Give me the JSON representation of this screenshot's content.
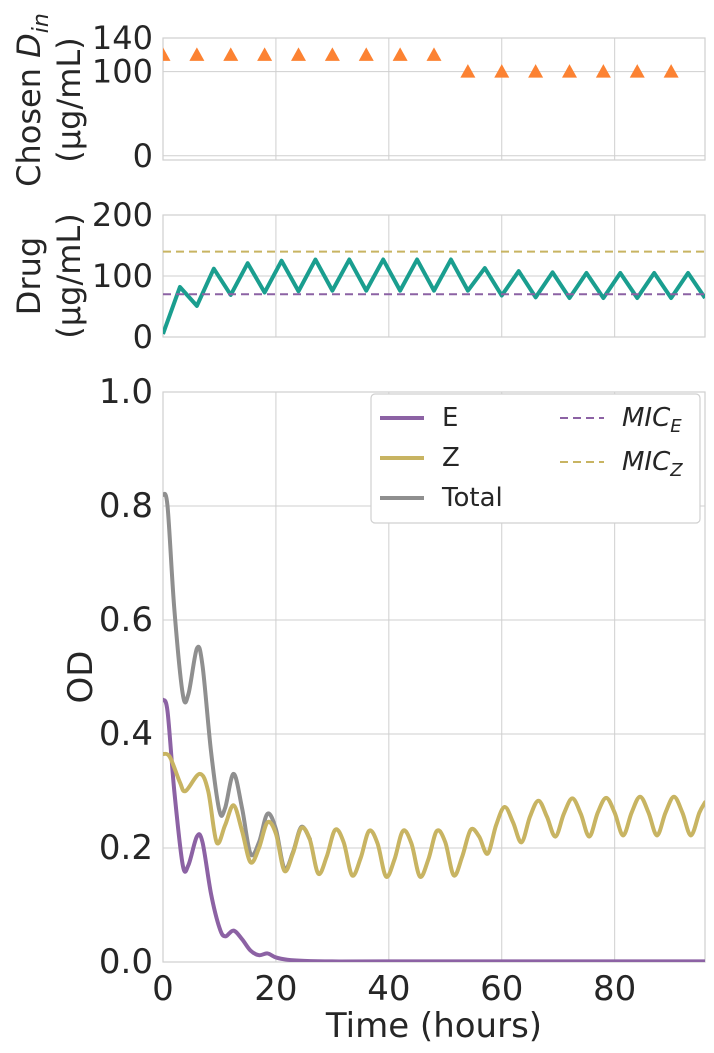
{
  "colors": {
    "dose": "#fc8232",
    "drug": "#1a9e8f",
    "mic_e": "#8c62a4",
    "mic_z": "#c8b462",
    "E": "#8c62a4",
    "Z": "#c8b462",
    "total": "#8f8f8f",
    "grid": "#cfcfcf",
    "axis_text": "#262626"
  },
  "chart_data": [
    {
      "type": "scatter",
      "marker": "triangle",
      "ylabel_line1": "Chosen ",
      "ylabel_math": "D",
      "ylabel_sub": "in",
      "ylabel_line2": "(μg/mL)",
      "xlim": [
        0,
        96
      ],
      "ylim": [
        -5,
        140
      ],
      "yticks": [
        0,
        100,
        140
      ],
      "xticks": [
        0,
        20,
        40,
        60,
        80
      ],
      "grid": true,
      "x": [
        0,
        6,
        12,
        18,
        24,
        30,
        36,
        42,
        48,
        54,
        60,
        66,
        72,
        78,
        84,
        90
      ],
      "y": [
        120,
        120,
        120,
        120,
        120,
        120,
        120,
        120,
        120,
        100,
        100,
        100,
        100,
        100,
        100,
        100
      ]
    },
    {
      "type": "line",
      "ylabel_line1": "Drug",
      "ylabel_line2": "(μg/mL)",
      "xlim": [
        0,
        96
      ],
      "ylim": [
        0,
        200
      ],
      "yticks": [
        0,
        100,
        200
      ],
      "xticks": [
        0,
        20,
        40,
        60,
        80
      ],
      "grid": true,
      "series": [
        {
          "key": "drug",
          "style": "solid",
          "x": [
            0,
            3,
            6,
            9,
            12,
            15,
            18,
            21,
            24,
            27,
            30,
            33,
            36,
            39,
            42,
            45,
            48,
            51,
            54,
            57,
            60,
            63,
            66,
            69,
            72,
            75,
            78,
            81,
            84,
            87,
            90,
            93,
            96
          ],
          "y": [
            5,
            82,
            51,
            112,
            69,
            121,
            73,
            125,
            75,
            127,
            76,
            127,
            76,
            127,
            76,
            127,
            76,
            127,
            76,
            113,
            68,
            108,
            65,
            106,
            64,
            105,
            64,
            105,
            64,
            105,
            64,
            105,
            64
          ]
        },
        {
          "key": "mic_e",
          "style": "dashed",
          "x": [
            0,
            96
          ],
          "y": [
            70,
            70
          ]
        },
        {
          "key": "mic_z",
          "style": "dashed",
          "x": [
            0,
            96
          ],
          "y": [
            140,
            140
          ]
        }
      ]
    },
    {
      "type": "line",
      "ylabel": "OD",
      "xlabel": "Time (hours)",
      "xlim": [
        0,
        96
      ],
      "ylim": [
        0.0,
        1.0
      ],
      "yticks": [
        "0.0",
        "0.2",
        "0.4",
        "0.6",
        "0.8",
        "1.0"
      ],
      "xticks": [
        0,
        20,
        40,
        60,
        80
      ],
      "grid": true,
      "legend": {
        "position": "top-right",
        "columns": 2,
        "entries": [
          {
            "label": "E",
            "key": "E",
            "style": "solid"
          },
          {
            "label": "Z",
            "key": "Z",
            "style": "solid"
          },
          {
            "label": "Total",
            "key": "total",
            "style": "solid"
          },
          {
            "label": "MIC",
            "sub": "E",
            "key": "mic_e",
            "style": "dashed",
            "math": true
          },
          {
            "label": "MIC",
            "sub": "Z",
            "key": "mic_z",
            "style": "dashed",
            "math": true
          }
        ]
      },
      "series": [
        {
          "key": "E",
          "x": [
            0,
            0.8,
            2,
            3.5,
            4.5,
            6,
            7,
            8.5,
            10,
            11,
            12.5,
            14,
            15.5,
            17,
            18.5,
            20,
            22,
            25,
            30,
            40,
            96
          ],
          "y": [
            0.46,
            0.44,
            0.3,
            0.17,
            0.17,
            0.22,
            0.21,
            0.12,
            0.06,
            0.045,
            0.055,
            0.04,
            0.02,
            0.012,
            0.015,
            0.008,
            0.004,
            0.002,
            0.001,
            0.001,
            0.001
          ]
        },
        {
          "key": "Z",
          "x": [
            0,
            1.2,
            3,
            4,
            6.5,
            8,
            9.5,
            11,
            12.5,
            14,
            15.5,
            17,
            18.5,
            20,
            21.5,
            23,
            24.5,
            26,
            27.5,
            29,
            30.5,
            32,
            33.5,
            35,
            36.5,
            38,
            39.5,
            41,
            42.5,
            44,
            45.5,
            47,
            48.5,
            50,
            51.5,
            53,
            54.5,
            56,
            57.5,
            59,
            60.5,
            62,
            63.5,
            65,
            66.5,
            68,
            69.5,
            71,
            72.5,
            74,
            75.5,
            77,
            78.5,
            80,
            81.5,
            83,
            84.5,
            86,
            87.5,
            89,
            90.5,
            92,
            93.5,
            95,
            96
          ],
          "y": [
            0.365,
            0.36,
            0.315,
            0.3,
            0.33,
            0.3,
            0.21,
            0.24,
            0.275,
            0.23,
            0.175,
            0.2,
            0.245,
            0.225,
            0.16,
            0.19,
            0.235,
            0.215,
            0.155,
            0.185,
            0.232,
            0.21,
            0.152,
            0.182,
            0.23,
            0.208,
            0.15,
            0.18,
            0.23,
            0.208,
            0.15,
            0.18,
            0.23,
            0.21,
            0.152,
            0.185,
            0.232,
            0.22,
            0.19,
            0.24,
            0.272,
            0.245,
            0.21,
            0.255,
            0.283,
            0.255,
            0.22,
            0.26,
            0.287,
            0.26,
            0.22,
            0.262,
            0.288,
            0.262,
            0.222,
            0.262,
            0.29,
            0.262,
            0.222,
            0.262,
            0.29,
            0.262,
            0.222,
            0.262,
            0.28
          ]
        },
        {
          "key": "total",
          "x": [
            0,
            0.8,
            2,
            3.5,
            4.5,
            6,
            7,
            8.5,
            10,
            11,
            12.5,
            14,
            15.5,
            17,
            18.5,
            20,
            21.5,
            23,
            24.5,
            26
          ],
          "y": [
            0.82,
            0.8,
            0.62,
            0.47,
            0.47,
            0.55,
            0.52,
            0.37,
            0.265,
            0.27,
            0.33,
            0.27,
            0.19,
            0.21,
            0.26,
            0.233,
            0.164,
            0.192,
            0.237,
            0.216
          ]
        }
      ]
    }
  ]
}
